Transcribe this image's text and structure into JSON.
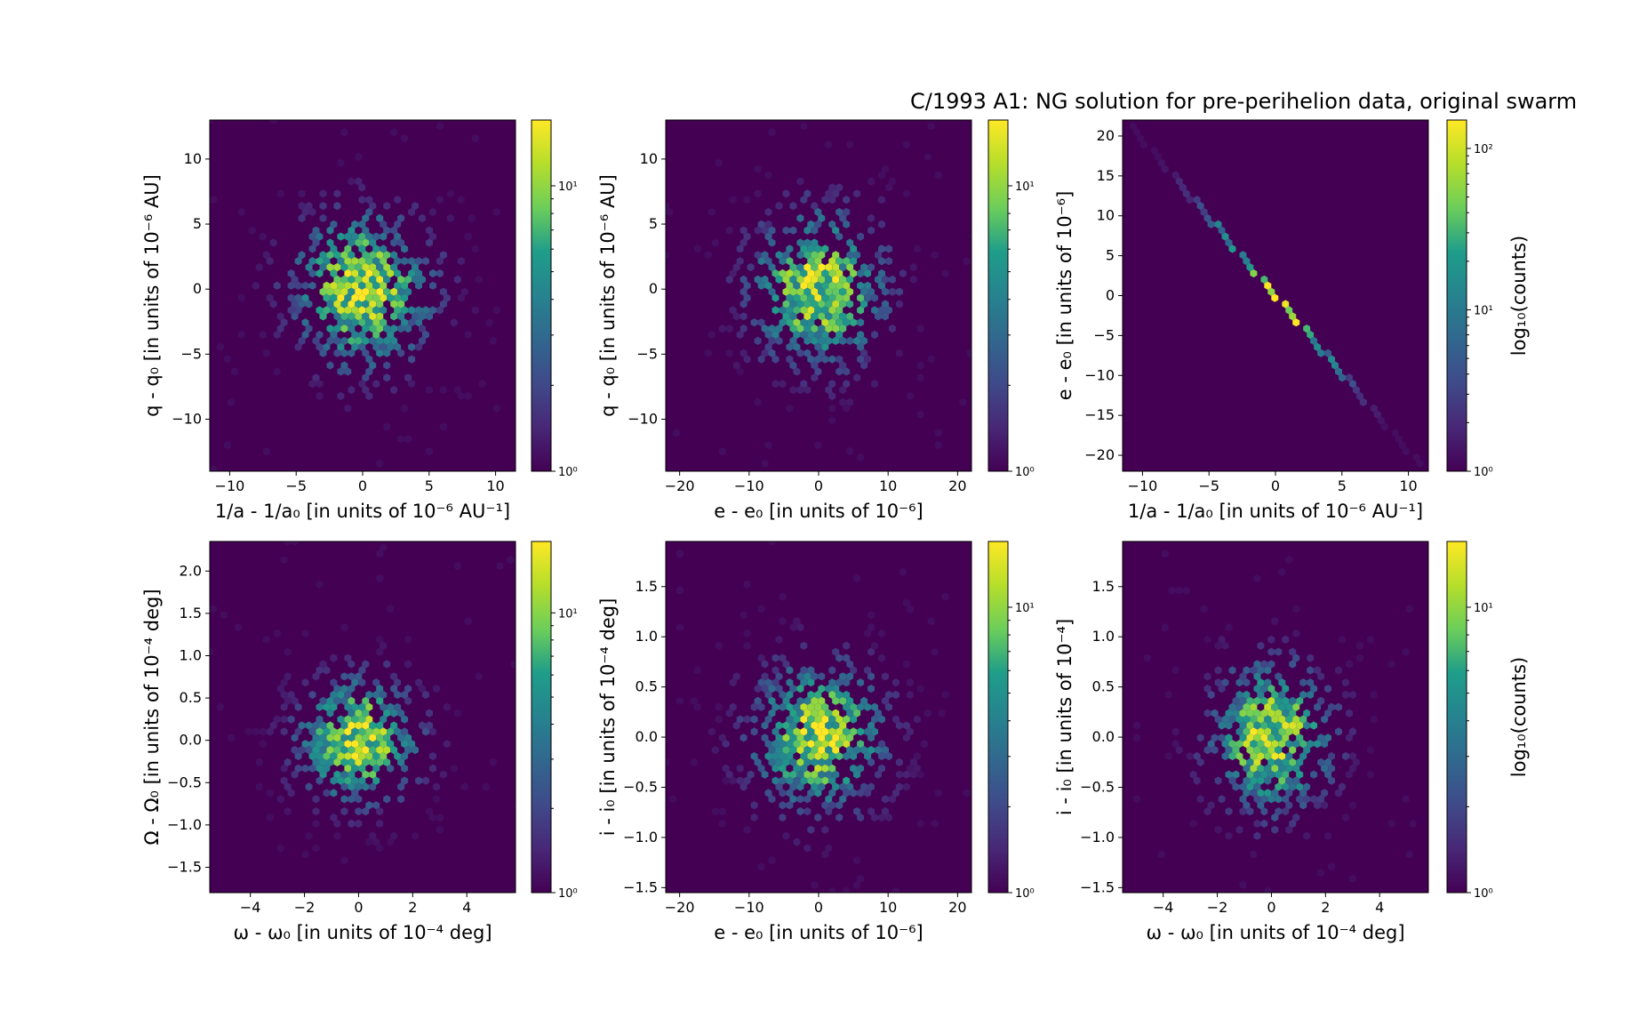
{
  "figure": {
    "suptitle": "C/1993 A1:  NG solution for pre-perihelion data, original swarm"
  },
  "colors": {
    "viridis": [
      "#440154",
      "#482777",
      "#3f4a8a",
      "#31678e",
      "#26838f",
      "#1f9d8a",
      "#6cce5a",
      "#b6de2b",
      "#fee825"
    ],
    "background": "#440154"
  },
  "chart_data": [
    {
      "type": "heatmap",
      "subtype": "hexbin",
      "xlabel": "1/a - 1/a₀ [in units of 10⁻⁶ AU⁻¹]",
      "ylabel": "q - q₀ [in units of 10⁻⁶ AU]",
      "xlim": [
        -11.5,
        11.5
      ],
      "ylim": [
        -14,
        13
      ],
      "xticks": [
        -10,
        -5,
        0,
        5,
        10
      ],
      "xtick_labels": [
        "−10",
        "−5",
        "0",
        "5",
        "10"
      ],
      "yticks": [
        -10,
        -5,
        0,
        5,
        10
      ],
      "ytick_labels": [
        "−10",
        "−5",
        "0",
        "5",
        "10"
      ],
      "distribution": {
        "kind": "blob",
        "sx": 3.5,
        "sy": 4.0
      },
      "colorbar": {
        "scale": "log",
        "max": 17,
        "ticks": [
          "10¹",
          "10⁰"
        ],
        "label": ""
      }
    },
    {
      "type": "heatmap",
      "subtype": "hexbin",
      "xlabel": "e - e₀ [in units of 10⁻⁶]",
      "ylabel": "q - q₀ [in units of 10⁻⁶ AU]",
      "xlim": [
        -22,
        22
      ],
      "ylim": [
        -14,
        13
      ],
      "xticks": [
        -20,
        -10,
        0,
        10,
        20
      ],
      "xtick_labels": [
        "−20",
        "−10",
        "0",
        "10",
        "20"
      ],
      "yticks": [
        -10,
        -5,
        0,
        5,
        10
      ],
      "ytick_labels": [
        "−10",
        "−5",
        "0",
        "5",
        "10"
      ],
      "distribution": {
        "kind": "blob",
        "sx": 6.5,
        "sy": 4.0
      },
      "colorbar": {
        "scale": "log",
        "max": 17,
        "ticks": [
          "10¹",
          "10⁰"
        ],
        "label": ""
      }
    },
    {
      "type": "heatmap",
      "subtype": "hexbin",
      "xlabel": "1/a - 1/a₀ [in units of 10⁻⁶ AU⁻¹]",
      "ylabel": "e - e₀ [in units of 10⁻⁶]",
      "xlim": [
        -11.5,
        11.5
      ],
      "ylim": [
        -22,
        22
      ],
      "xticks": [
        -10,
        -5,
        0,
        5,
        10
      ],
      "xtick_labels": [
        "−10",
        "−5",
        "0",
        "5",
        "10"
      ],
      "yticks": [
        -20,
        -15,
        -10,
        -5,
        0,
        5,
        10,
        15,
        20
      ],
      "ytick_labels": [
        "−20",
        "−15",
        "−10",
        "−5",
        "0",
        "5",
        "10",
        "15",
        "20"
      ],
      "distribution": {
        "kind": "line",
        "slope": -1.95,
        "x0": -11,
        "x1": 11,
        "sx": 3.5
      },
      "colorbar": {
        "scale": "log",
        "max": 150,
        "ticks": [
          "10²",
          "10¹",
          "10⁰"
        ],
        "label": "log₁₀(counts)"
      }
    },
    {
      "type": "heatmap",
      "subtype": "hexbin",
      "xlabel": "ω - ω₀ [in units of 10⁻⁴ deg]",
      "ylabel": "Ω - Ω₀ [in units of 10⁻⁴ deg]",
      "xlim": [
        -5.5,
        5.8
      ],
      "ylim": [
        -1.8,
        2.35
      ],
      "xticks": [
        -4,
        -2,
        0,
        2,
        4
      ],
      "xtick_labels": [
        "−4",
        "−2",
        "0",
        "2",
        "4"
      ],
      "yticks": [
        -1.5,
        -1.0,
        -0.5,
        0.0,
        0.5,
        1.0,
        1.5,
        2.0
      ],
      "ytick_labels": [
        "−1.5",
        "−1.0",
        "−0.5",
        "0.0",
        "0.5",
        "1.0",
        "1.5",
        "2.0"
      ],
      "distribution": {
        "kind": "blob",
        "sx": 1.5,
        "sy": 0.5
      },
      "colorbar": {
        "scale": "log",
        "max": 18,
        "ticks": [
          "10¹",
          "10⁰"
        ],
        "label": ""
      }
    },
    {
      "type": "heatmap",
      "subtype": "hexbin",
      "xlabel": "e - e₀ [in units of 10⁻⁶]",
      "ylabel": "i - i₀ [in units of 10⁻⁴ deg]",
      "xlim": [
        -22,
        22
      ],
      "ylim": [
        -1.55,
        1.95
      ],
      "xticks": [
        -20,
        -10,
        0,
        10,
        20
      ],
      "xtick_labels": [
        "−20",
        "−10",
        "0",
        "10",
        "20"
      ],
      "yticks": [
        -1.5,
        -1.0,
        -0.5,
        0.0,
        0.5,
        1.0,
        1.5
      ],
      "ytick_labels": [
        "−1.5",
        "−1.0",
        "−0.5",
        "0.0",
        "0.5",
        "1.0",
        "1.5"
      ],
      "distribution": {
        "kind": "blob",
        "sx": 6.5,
        "sy": 0.5
      },
      "colorbar": {
        "scale": "log",
        "max": 17,
        "ticks": [
          "10¹",
          "10⁰"
        ],
        "label": ""
      }
    },
    {
      "type": "heatmap",
      "subtype": "hexbin",
      "xlabel": "ω - ω₀ [in units of 10⁻⁴ deg]",
      "ylabel": "i - i₀ [in units of 10⁻⁴]",
      "xlim": [
        -5.5,
        5.8
      ],
      "ylim": [
        -1.55,
        1.95
      ],
      "xticks": [
        -4,
        -2,
        0,
        2,
        4
      ],
      "xtick_labels": [
        "−4",
        "−2",
        "0",
        "2",
        "4"
      ],
      "yticks": [
        -1.5,
        -1.0,
        -0.5,
        0.0,
        0.5,
        1.0,
        1.5
      ],
      "ytick_labels": [
        "−1.5",
        "−1.0",
        "−0.5",
        "0.0",
        "0.5",
        "1.0",
        "1.5"
      ],
      "distribution": {
        "kind": "blob",
        "sx": 1.5,
        "sy": 0.5
      },
      "colorbar": {
        "scale": "log",
        "max": 17,
        "ticks": [
          "10¹",
          "10⁰"
        ],
        "label": "log₁₀(counts)"
      }
    }
  ]
}
